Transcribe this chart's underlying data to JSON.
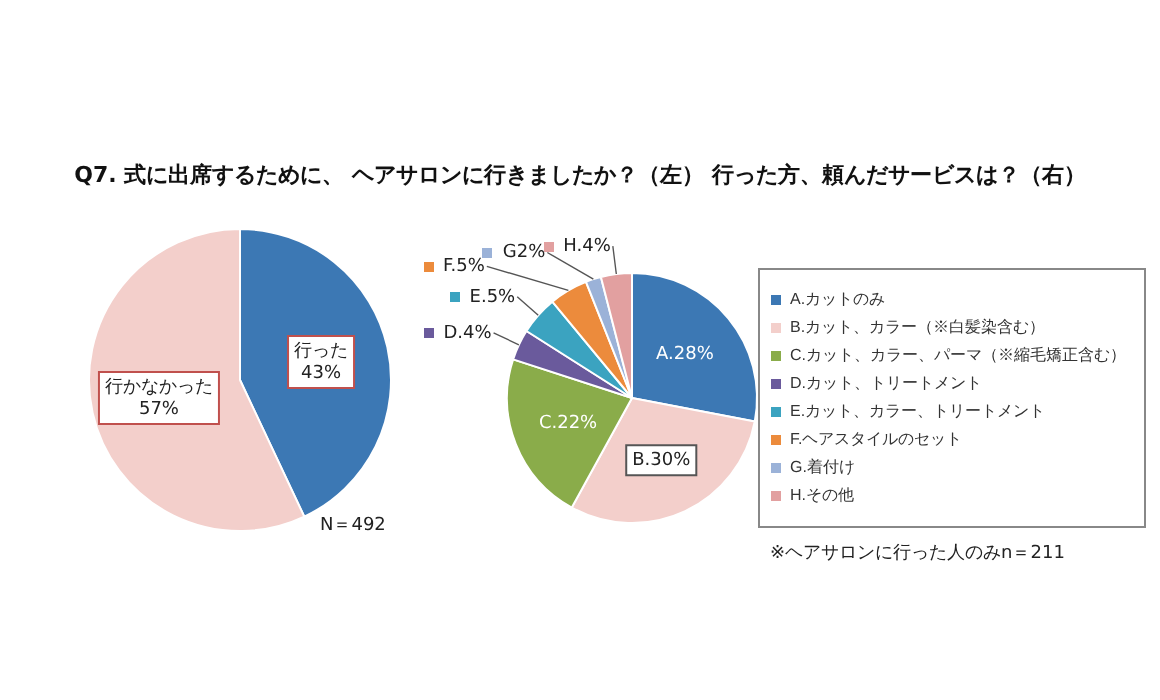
{
  "chart_data": [
    {
      "type": "pie",
      "title": "Q7. 式に出席するために、 ヘアサロンに行きましたか？（左） 行った方、頼んだサービスは？（右）",
      "categories": [
        "行った",
        "行かなかった"
      ],
      "values": [
        43,
        57
      ],
      "colors": [
        "#3c78b4",
        "#f3cfcb"
      ],
      "value_labels": [
        "43%",
        "57%"
      ],
      "legend": false,
      "annotations": [
        "N＝492"
      ]
    },
    {
      "type": "pie",
      "categories": [
        "A.カットのみ",
        "B.カット、カラー（※白髪染含む）",
        "C.カット、カラー、パーマ（※縮毛矯正含む）",
        "D.カット、トリートメント",
        "E.カット、カラー、トリートメント",
        "F.ヘアスタイルのセット",
        "G.着付け",
        "H.その他"
      ],
      "values": [
        28,
        30,
        22,
        4,
        5,
        5,
        2,
        4
      ],
      "colors": [
        "#3c78b4",
        "#f3cfcb",
        "#8aac4a",
        "#6a5a9c",
        "#3ba3c0",
        "#ec8b3c",
        "#9bb2d8",
        "#e2a0a0"
      ],
      "value_labels": [
        "A.28%",
        "B.30%",
        "C.22%",
        "D.4%",
        "E.5%",
        "F.5%",
        "G2%",
        "H.4%"
      ],
      "legend": "right",
      "annotations": [
        "※ヘアサロンに行った人のみn＝211"
      ]
    }
  ]
}
